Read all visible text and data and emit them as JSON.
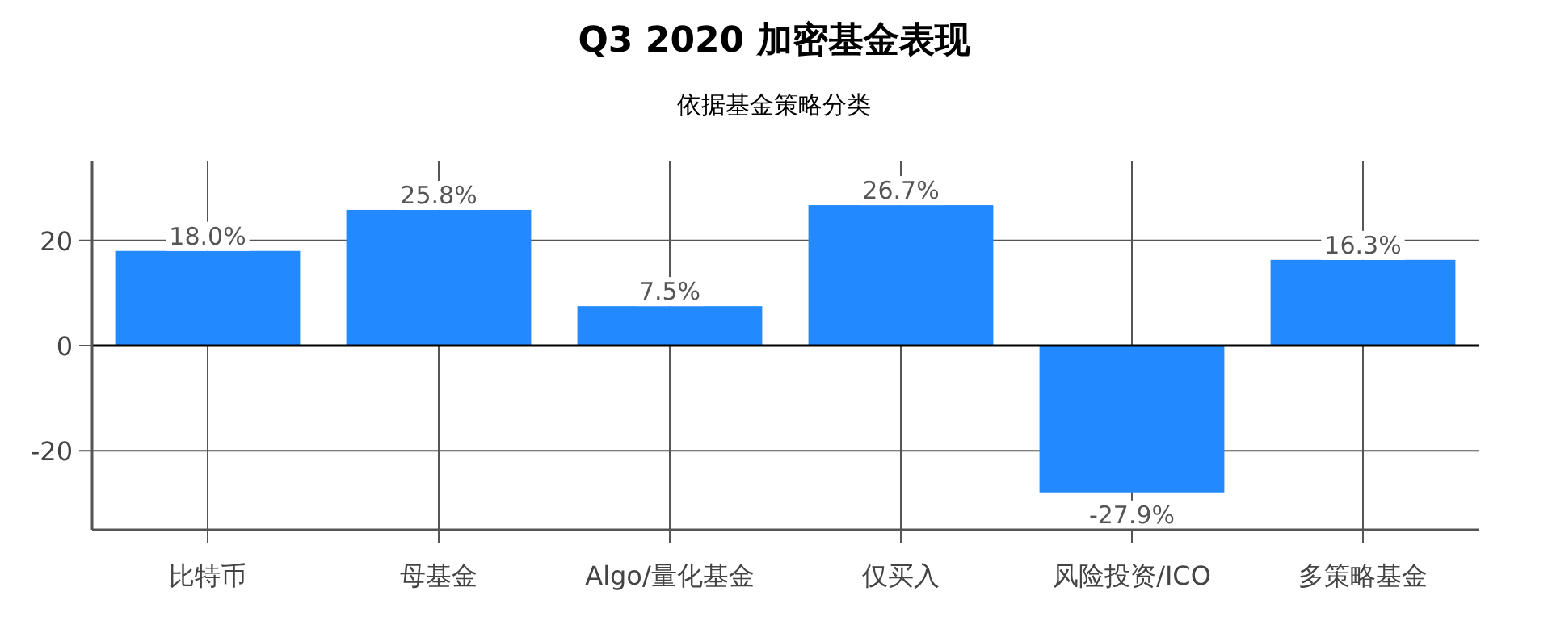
{
  "chart_data": {
    "type": "bar",
    "title": "Q3 2020 加密基金表现",
    "subtitle": "依据基金策略分类",
    "categories": [
      "比特币",
      "母基金",
      "Algo/量化基金",
      "仅买入",
      "风险投资/ICO",
      "多策略基金"
    ],
    "values": [
      18.0,
      25.8,
      7.5,
      26.7,
      -27.9,
      16.3
    ],
    "value_labels": [
      "18.0%",
      "25.8%",
      "7.5%",
      "26.7%",
      "-27.9%",
      "16.3%"
    ],
    "color": "#2389ff",
    "ylim": [
      -35,
      35
    ],
    "yticks": [
      -20,
      0,
      20
    ],
    "grid": true
  }
}
